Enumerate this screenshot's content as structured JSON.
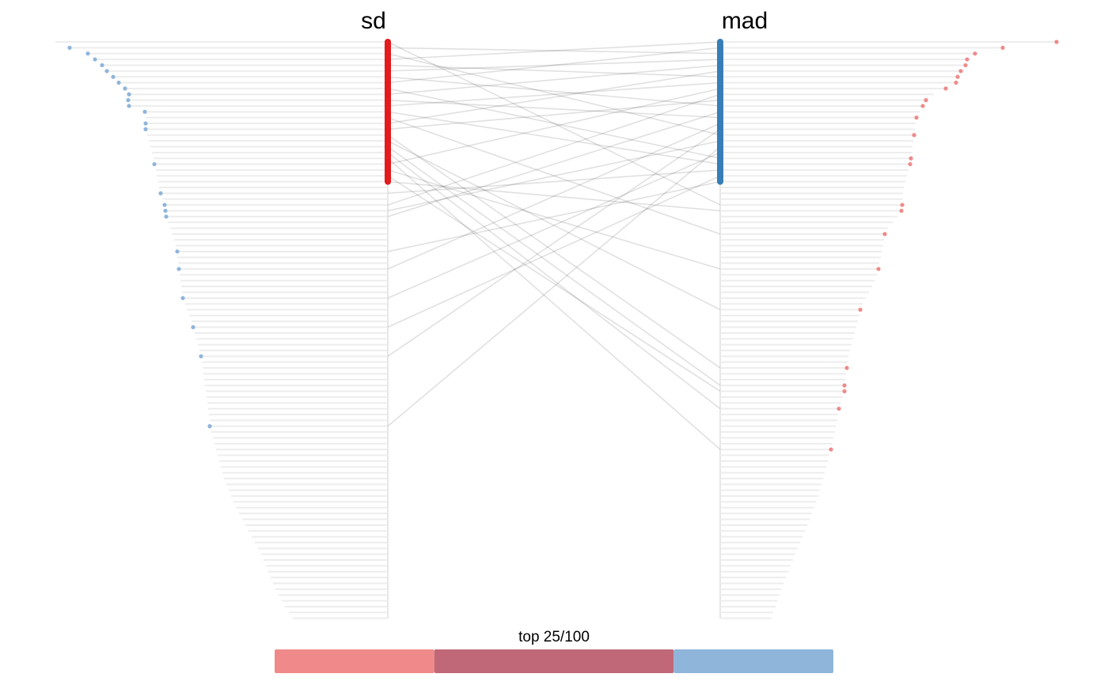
{
  "chart_data": {
    "type": "rank-comparison",
    "caption": "top 25/100",
    "top_n": 25,
    "series": [
      {
        "name": "sd",
        "color": "#e41a1c",
        "light_color": "#f08a8a",
        "values": [
          4.2,
          4.02,
          3.79,
          3.7,
          3.61,
          3.55,
          3.47,
          3.4,
          3.32,
          3.27,
          3.28,
          3.27,
          3.07,
          3.06,
          3.06,
          3.06,
          3.04,
          3.02,
          3.0,
          2.98,
          2.96,
          2.95,
          2.93,
          2.92,
          2.9,
          2.89,
          2.87,
          2.84,
          2.82,
          2.81,
          2.8,
          2.78,
          2.75,
          2.73,
          2.7,
          2.68,
          2.66,
          2.66,
          2.65,
          2.64,
          2.63,
          2.62,
          2.61,
          2.6,
          2.59,
          2.56,
          2.54,
          2.51,
          2.48,
          2.46,
          2.44,
          2.42,
          2.4,
          2.38,
          2.36,
          2.35,
          2.34,
          2.33,
          2.32,
          2.31,
          2.3,
          2.29,
          2.28,
          2.27,
          2.26,
          2.25,
          2.25,
          2.23,
          2.21,
          2.19,
          2.17,
          2.15,
          2.13,
          2.11,
          2.09,
          2.07,
          2.04,
          2.01,
          1.98,
          1.95,
          1.92,
          1.88,
          1.84,
          1.8,
          1.76,
          1.72,
          1.68,
          1.64,
          1.6,
          1.57,
          1.54,
          1.51,
          1.48,
          1.45,
          1.42,
          1.38,
          1.34,
          1.3,
          1.25,
          1.2
        ]
      },
      {
        "name": "mad",
        "color": "#377eb8",
        "light_color": "#8fb5da",
        "values": [
          4.25,
          3.57,
          3.22,
          3.12,
          3.1,
          3.04,
          3.0,
          2.98,
          2.85,
          2.7,
          2.6,
          2.56,
          2.52,
          2.48,
          2.47,
          2.46,
          2.45,
          2.44,
          2.43,
          2.42,
          2.41,
          2.4,
          2.38,
          2.36,
          2.34,
          2.32,
          2.31,
          2.31,
          2.3,
          2.29,
          2.24,
          2.18,
          2.12,
          2.08,
          2.07,
          2.06,
          2.04,
          2.03,
          2.01,
          2.0,
          1.98,
          1.95,
          1.92,
          1.88,
          1.84,
          1.8,
          1.77,
          1.76,
          1.74,
          1.72,
          1.7,
          1.68,
          1.66,
          1.64,
          1.62,
          1.61,
          1.6,
          1.59,
          1.58,
          1.57,
          1.57,
          1.55,
          1.52,
          1.5,
          1.49,
          1.48,
          1.46,
          1.45,
          1.43,
          1.42,
          1.4,
          1.38,
          1.36,
          1.34,
          1.32,
          1.3,
          1.28,
          1.26,
          1.24,
          1.21,
          1.19,
          1.16,
          1.13,
          1.1,
          1.07,
          1.04,
          1.01,
          0.98,
          0.95,
          0.92,
          0.89,
          0.86,
          0.83,
          0.8,
          0.77,
          0.75,
          0.72,
          0.7,
          0.67,
          0.65
        ]
      }
    ],
    "links": [
      {
        "sd_rank": 2,
        "mad_rank": 3
      },
      {
        "sd_rank": 3,
        "mad_rank": 17
      },
      {
        "sd_rank": 4,
        "mad_rank": 1
      },
      {
        "sd_rank": 5,
        "mad_rank": 7
      },
      {
        "sd_rank": 6,
        "mad_rank": 4
      },
      {
        "sd_rank": 7,
        "mad_rank": 12
      },
      {
        "sd_rank": 8,
        "mad_rank": 2
      },
      {
        "sd_rank": 9,
        "mad_rank": 21
      },
      {
        "sd_rank": 10,
        "mad_rank": 5
      },
      {
        "sd_rank": 11,
        "mad_rank": 14
      },
      {
        "sd_rank": 12,
        "mad_rank": 8
      },
      {
        "sd_rank": 13,
        "mad_rank": 22
      },
      {
        "sd_rank": 15,
        "mad_rank": 6
      },
      {
        "sd_rank": 16,
        "mad_rank": 11
      },
      {
        "sd_rank": 22,
        "mad_rank": 9
      },
      {
        "sd_rank": 1,
        "mad_rank": 29
      },
      {
        "sd_rank": 14,
        "mad_rank": 34
      },
      {
        "sd_rank": 17,
        "mad_rank": 57
      },
      {
        "sd_rank": 18,
        "mad_rank": 47
      },
      {
        "sd_rank": 19,
        "mad_rank": 60
      },
      {
        "sd_rank": 20,
        "mad_rank": 64
      },
      {
        "sd_rank": 21,
        "mad_rank": 71
      },
      {
        "sd_rank": 23,
        "mad_rank": 40
      },
      {
        "sd_rank": 24,
        "mad_rank": 61
      },
      {
        "sd_rank": 25,
        "mad_rank": 30
      },
      {
        "sd_rank": 27,
        "mad_rank": 23
      },
      {
        "sd_rank": 29,
        "mad_rank": 10
      },
      {
        "sd_rank": 30,
        "mad_rank": 18
      },
      {
        "sd_rank": 31,
        "mad_rank": 13
      },
      {
        "sd_rank": 37,
        "mad_rank": 25
      },
      {
        "sd_rank": 40,
        "mad_rank": 15
      },
      {
        "sd_rank": 45,
        "mad_rank": 20
      },
      {
        "sd_rank": 50,
        "mad_rank": 24
      },
      {
        "sd_rank": 55,
        "mad_rank": 16
      },
      {
        "sd_rank": 67,
        "mad_rank": 19
      }
    ],
    "summary": {
      "sd_only": 10,
      "both": 15,
      "mad_only": 10,
      "overlap_color": "#c06878"
    }
  }
}
